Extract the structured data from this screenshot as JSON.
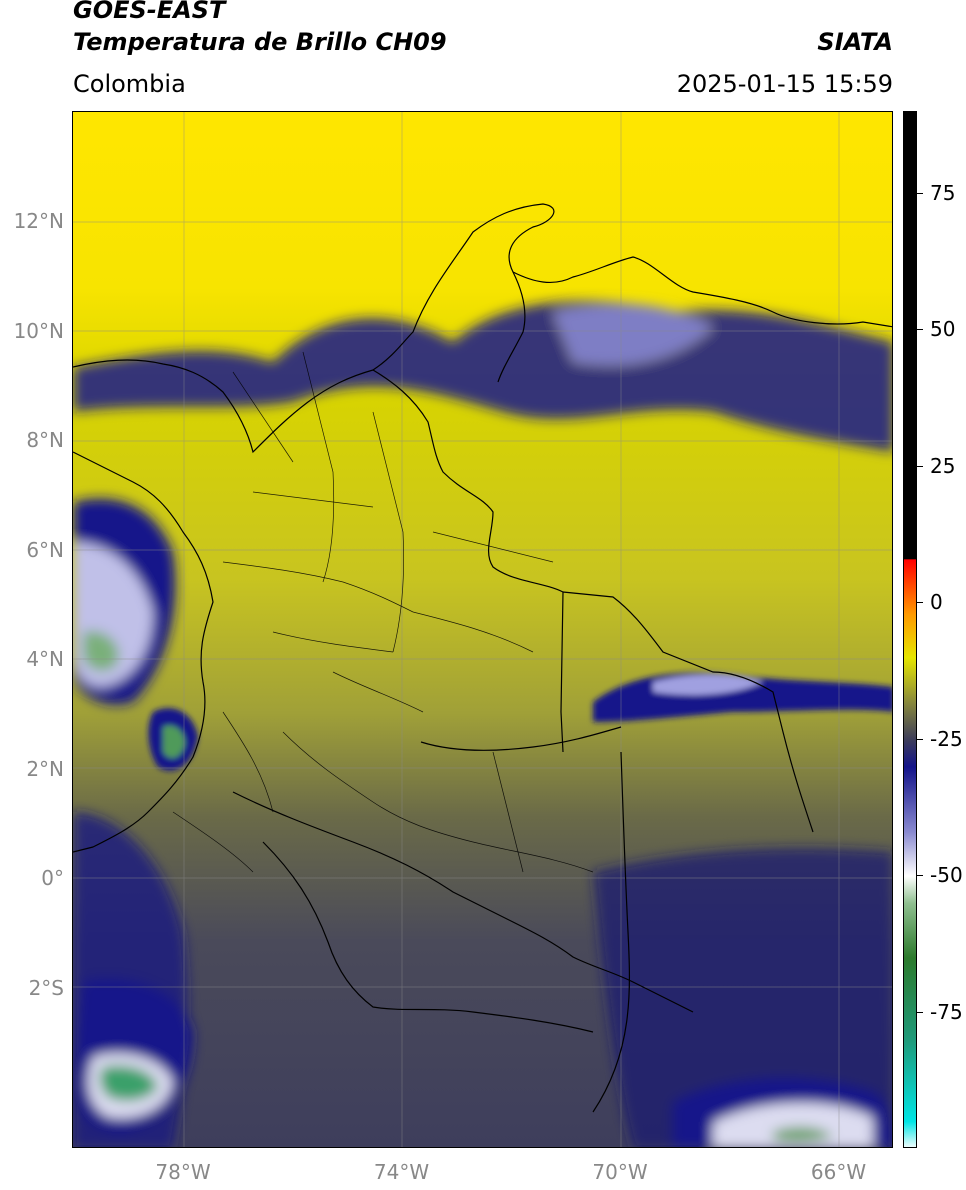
{
  "header": {
    "satellite": "GOES-EAST",
    "product": "Temperatura de Brillo CH09",
    "region": "Colombia",
    "organization": "SIATA",
    "datetime": "2025-01-15 15:59"
  },
  "map": {
    "lon_range": [
      -80,
      -65
    ],
    "lat_range": [
      -5,
      14
    ],
    "lat_ticks": [
      {
        "value": 12,
        "label": "12°N"
      },
      {
        "value": 10,
        "label": "10°N"
      },
      {
        "value": 8,
        "label": "8°N"
      },
      {
        "value": 6,
        "label": "6°N"
      },
      {
        "value": 4,
        "label": "4°N"
      },
      {
        "value": 2,
        "label": "2°N"
      },
      {
        "value": 0,
        "label": "0°"
      },
      {
        "value": -2,
        "label": "2°S"
      }
    ],
    "lon_ticks": [
      {
        "value": -78,
        "label": "78°W"
      },
      {
        "value": -74,
        "label": "74°W"
      },
      {
        "value": -70,
        "label": "70°W"
      },
      {
        "value": -66,
        "label": "66°W"
      }
    ],
    "grid": true
  },
  "colorbar": {
    "range": [
      -100,
      90
    ],
    "ticks": [
      {
        "value": 75,
        "label": "75"
      },
      {
        "value": 50,
        "label": "50"
      },
      {
        "value": 25,
        "label": "25"
      },
      {
        "value": 0,
        "label": "0"
      },
      {
        "value": -25,
        "label": "-25"
      },
      {
        "value": -50,
        "label": "-50"
      },
      {
        "value": -75,
        "label": "-75"
      }
    ],
    "stops": [
      {
        "value": -100,
        "color": "#ffffff"
      },
      {
        "value": -95,
        "color": "#00e5e5"
      },
      {
        "value": -80,
        "color": "#1f9a7a"
      },
      {
        "value": -65,
        "color": "#2c7a2c"
      },
      {
        "value": -55,
        "color": "#8fbf8f"
      },
      {
        "value": -50,
        "color": "#ffffff"
      },
      {
        "value": -42,
        "color": "#8a8ad0"
      },
      {
        "value": -30,
        "color": "#14148a"
      },
      {
        "value": -25,
        "color": "#3d3d5a"
      },
      {
        "value": -18,
        "color": "#8a8a3a"
      },
      {
        "value": -10,
        "color": "#e6e600"
      },
      {
        "value": -2,
        "color": "#ff9900"
      },
      {
        "value": 8,
        "color": "#ff0000"
      },
      {
        "value": 8.1,
        "color": "#000000"
      },
      {
        "value": 90,
        "color": "#000000"
      }
    ]
  }
}
